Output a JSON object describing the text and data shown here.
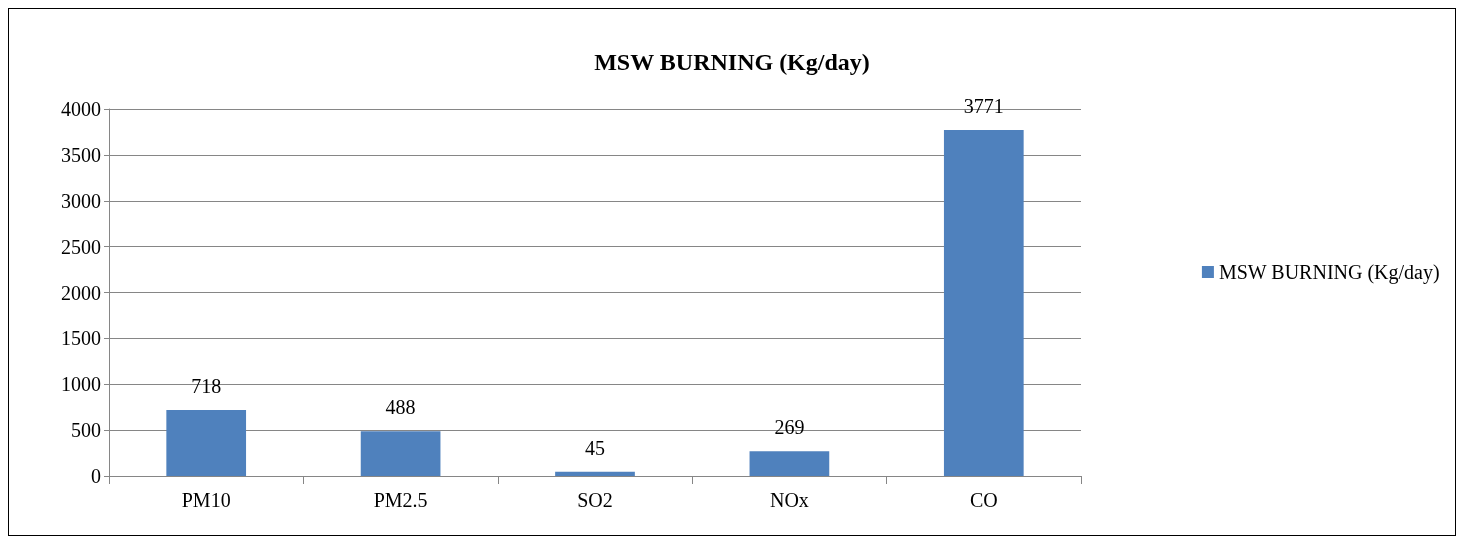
{
  "chart_data": {
    "type": "bar",
    "title": "MSW BURNING (Kg/day)",
    "categories": [
      "PM10",
      "PM2.5",
      "SO2",
      "NOx",
      "CO"
    ],
    "series": [
      {
        "name": "MSW BURNING (Kg/day)",
        "color": "#4f81bd",
        "values": [
          718,
          488,
          45,
          269,
          3771
        ]
      }
    ],
    "ylim": [
      0,
      4000
    ],
    "yticks": [
      0,
      500,
      1000,
      1500,
      2000,
      2500,
      3000,
      3500,
      4000
    ],
    "grid": "y",
    "legend": "right",
    "data_labels": true
  }
}
